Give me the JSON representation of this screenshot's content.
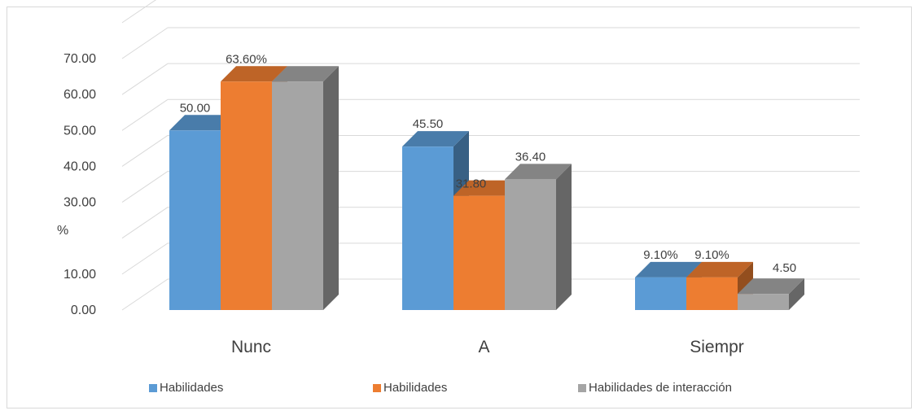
{
  "chart_data": {
    "type": "bar",
    "title": "",
    "xlabel": "",
    "ylabel": "%",
    "ylim": [
      0,
      70
    ],
    "ytick_labels": [
      "0.00",
      "10.00",
      "",
      "30.00",
      "40.00",
      "50.00",
      "60.00",
      "70.00"
    ],
    "categories": [
      "Nunc",
      "A",
      "Siempr"
    ],
    "series": [
      {
        "name": "Habilidades",
        "values": [
          50.0,
          45.5,
          9.1
        ],
        "labels": [
          "50.00",
          "45.50",
          "9.10%"
        ],
        "color": "#5b9bd5"
      },
      {
        "name": "Habilidades",
        "values": [
          63.6,
          31.8,
          9.1
        ],
        "labels": [
          "63.60%",
          "31.80",
          "9.10%"
        ],
        "color": "#ed7d31"
      },
      {
        "name": "Habilidades de interacción",
        "values": [
          63.6,
          36.4,
          4.5
        ],
        "labels": [
          "",
          "36.40",
          "4.50"
        ],
        "color": "#a5a5a5"
      }
    ],
    "grid": true,
    "legend": "bottom",
    "style": "3d-clustered-column"
  }
}
